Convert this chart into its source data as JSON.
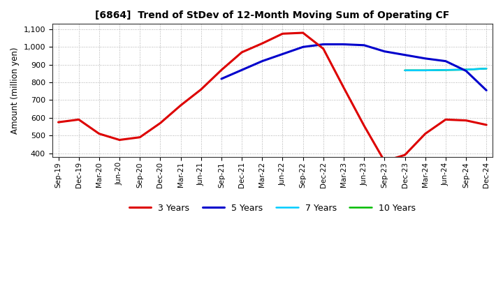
{
  "title": "[6864]  Trend of StDev of 12-Month Moving Sum of Operating CF",
  "ylabel": "Amount (million yen)",
  "ylim": [
    380,
    1130
  ],
  "yticks": [
    400,
    500,
    600,
    700,
    800,
    900,
    1000,
    1100
  ],
  "background_color": "#ffffff",
  "grid_color": "#888888",
  "x_labels": [
    "Sep-19",
    "Dec-19",
    "Mar-20",
    "Jun-20",
    "Sep-20",
    "Dec-20",
    "Mar-21",
    "Jun-21",
    "Sep-21",
    "Dec-21",
    "Mar-22",
    "Jun-22",
    "Sep-22",
    "Dec-22",
    "Mar-23",
    "Jun-23",
    "Sep-23",
    "Dec-23",
    "Mar-24",
    "Jun-24",
    "Sep-24",
    "Dec-24"
  ],
  "series": {
    "3 Years": {
      "color": "#dd0000",
      "x_indices": [
        0,
        1,
        2,
        3,
        4,
        5,
        6,
        7,
        8,
        9,
        10,
        11,
        12,
        13,
        14,
        15,
        16,
        17,
        18,
        19,
        20,
        21
      ],
      "y": [
        575,
        590,
        510,
        475,
        490,
        570,
        670,
        760,
        870,
        970,
        1020,
        1075,
        1080,
        990,
        770,
        555,
        355,
        390,
        510,
        590,
        585,
        560
      ]
    },
    "5 Years": {
      "color": "#0000cc",
      "x_indices": [
        8,
        9,
        10,
        11,
        12,
        13,
        14,
        15,
        16,
        17,
        18,
        19,
        20,
        21
      ],
      "y": [
        820,
        870,
        920,
        960,
        1000,
        1015,
        1015,
        1010,
        975,
        955,
        935,
        920,
        865,
        755
      ]
    },
    "7 Years": {
      "color": "#00ccff",
      "x_indices": [
        17,
        18,
        19,
        20,
        21
      ],
      "y": [
        868,
        868,
        870,
        872,
        878
      ]
    },
    "10 Years": {
      "color": "#00bb00",
      "x_indices": [
        17,
        18,
        19,
        20,
        21
      ],
      "y": [
        868,
        868,
        870,
        872,
        878
      ]
    }
  },
  "legend_order": [
    "3 Years",
    "5 Years",
    "7 Years",
    "10 Years"
  ]
}
